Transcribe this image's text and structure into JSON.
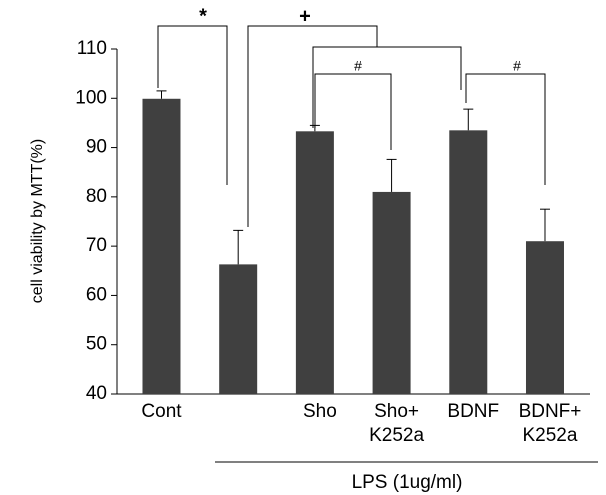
{
  "chart_data": {
    "type": "bar",
    "y_label": "cell viability by MTT(%)",
    "categories": [
      "Cont",
      null,
      "Sho",
      "Sho+\nK252a",
      "BDNF",
      "BDNF+\nK252a"
    ],
    "values": [
      99.9,
      66.3,
      93.3,
      81.0,
      93.5,
      71.0
    ],
    "errors": [
      1.6,
      6.9,
      1.2,
      6.6,
      4.3,
      6.5
    ],
    "color": "#404040",
    "ylim": [
      40,
      110
    ],
    "yticks": [
      40,
      50,
      60,
      70,
      80,
      90,
      100,
      110
    ],
    "grid": false,
    "group_label": "LPS (1ug/ml)",
    "annotations": [
      "*",
      "+",
      "#",
      "#"
    ]
  }
}
